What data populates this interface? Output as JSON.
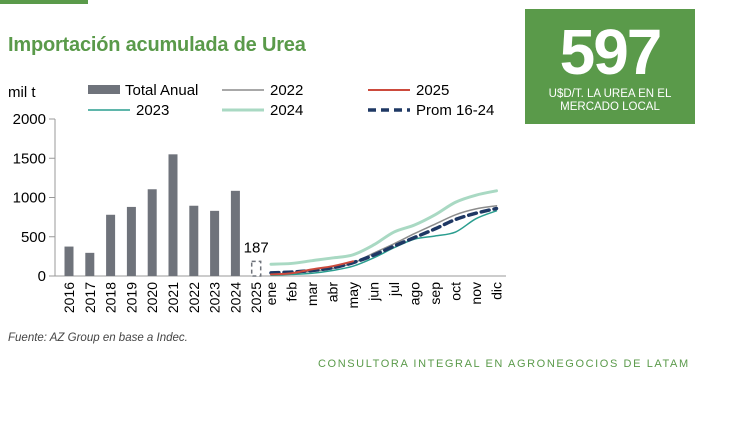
{
  "colors": {
    "title": "#5a9a4a",
    "badge_bg": "#5a9a4a",
    "footer": "#5a9a4a",
    "bar": "#6f737b",
    "s2022": "#8c8c8c",
    "s2023": "#2a9d8f",
    "s2024": "#a9d9c3",
    "s2025": "#cc4a3c",
    "prom": "#1f3864"
  },
  "header": {
    "title": "Importación acumulada de Urea"
  },
  "badge": {
    "number": "597",
    "caption": "U$D/T. LA UREA EN EL MERCADO LOCAL"
  },
  "source": "Fuente: AZ Group en base a Indec.",
  "footer": "CONSULTORA INTEGRAL EN AGRONEGOCIOS DE LATAM",
  "chart_data": {
    "type": "bar",
    "ylabel": "mil t",
    "ylim": [
      0,
      2000
    ],
    "yticks": [
      0,
      500,
      1000,
      1500,
      2000
    ],
    "legend": {
      "bar": "Total Anual",
      "s2022": "2022",
      "s2025": "2025",
      "s2023": "2023",
      "s2024": "2024",
      "prom": "Prom 16-24"
    },
    "annual": {
      "categories": [
        "2016",
        "2017",
        "2018",
        "2019",
        "2020",
        "2021",
        "2022",
        "2023",
        "2024",
        "2025"
      ],
      "values": [
        375,
        295,
        780,
        880,
        1105,
        1550,
        895,
        830,
        1085,
        187
      ],
      "partial_index": 9,
      "partial_label": "187"
    },
    "monthly": {
      "categories": [
        "ene",
        "feb",
        "mar",
        "abr",
        "may",
        "jun",
        "jul",
        "ago",
        "sep",
        "oct",
        "nov",
        "dic"
      ],
      "series": [
        {
          "key": "s2024",
          "name": "2024",
          "values": [
            150,
            160,
            195,
            230,
            270,
            395,
            560,
            650,
            780,
            940,
            1030,
            1085
          ]
        },
        {
          "key": "s2022",
          "name": "2022",
          "values": [
            20,
            35,
            60,
            95,
            165,
            290,
            410,
            540,
            660,
            780,
            855,
            895
          ]
        },
        {
          "key": "s2023",
          "name": "2023",
          "values": [
            10,
            20,
            35,
            70,
            125,
            230,
            360,
            470,
            510,
            560,
            730,
            830
          ]
        },
        {
          "key": "prom",
          "name": "Prom 16-24",
          "values": [
            40,
            50,
            70,
            105,
            170,
            265,
            380,
            490,
            600,
            720,
            800,
            860
          ]
        },
        {
          "key": "s2025",
          "name": "2025",
          "values": [
            20,
            35,
            85,
            125,
            187
          ]
        }
      ]
    }
  }
}
